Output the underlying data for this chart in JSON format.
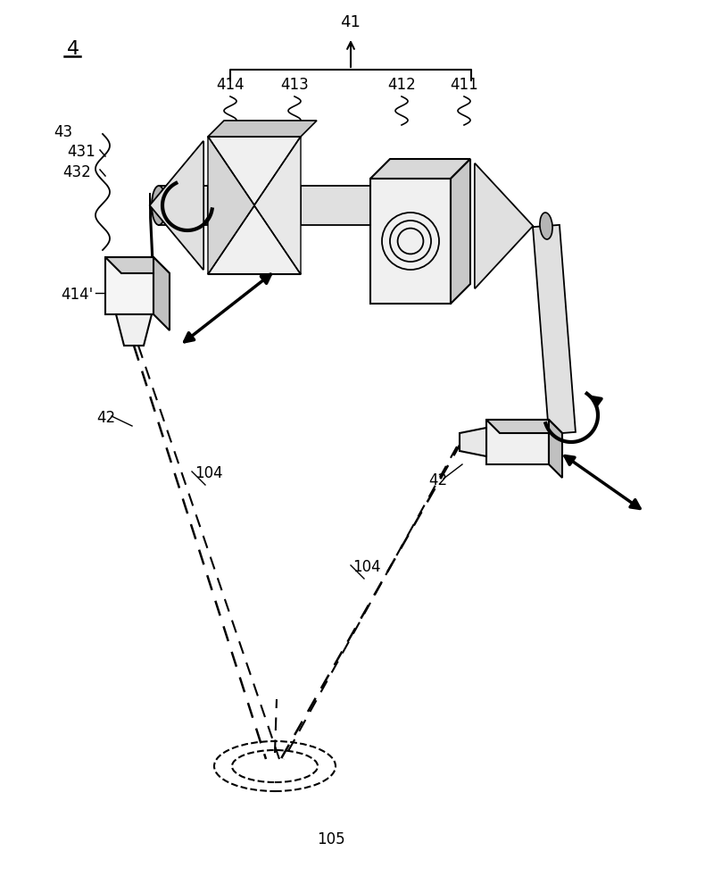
{
  "bg_color": "#ffffff",
  "line_color": "#000000",
  "labels": {
    "main": "4",
    "41": "41",
    "411": "411",
    "412": "412",
    "413": "413",
    "414": "414",
    "414p": "414'",
    "43": "43",
    "431": "431",
    "432": "432",
    "42a": "42",
    "42b": "42",
    "104a": "104",
    "104b": "104",
    "105": "105"
  },
  "figsize": [
    7.9,
    10.0
  ],
  "dpi": 100
}
